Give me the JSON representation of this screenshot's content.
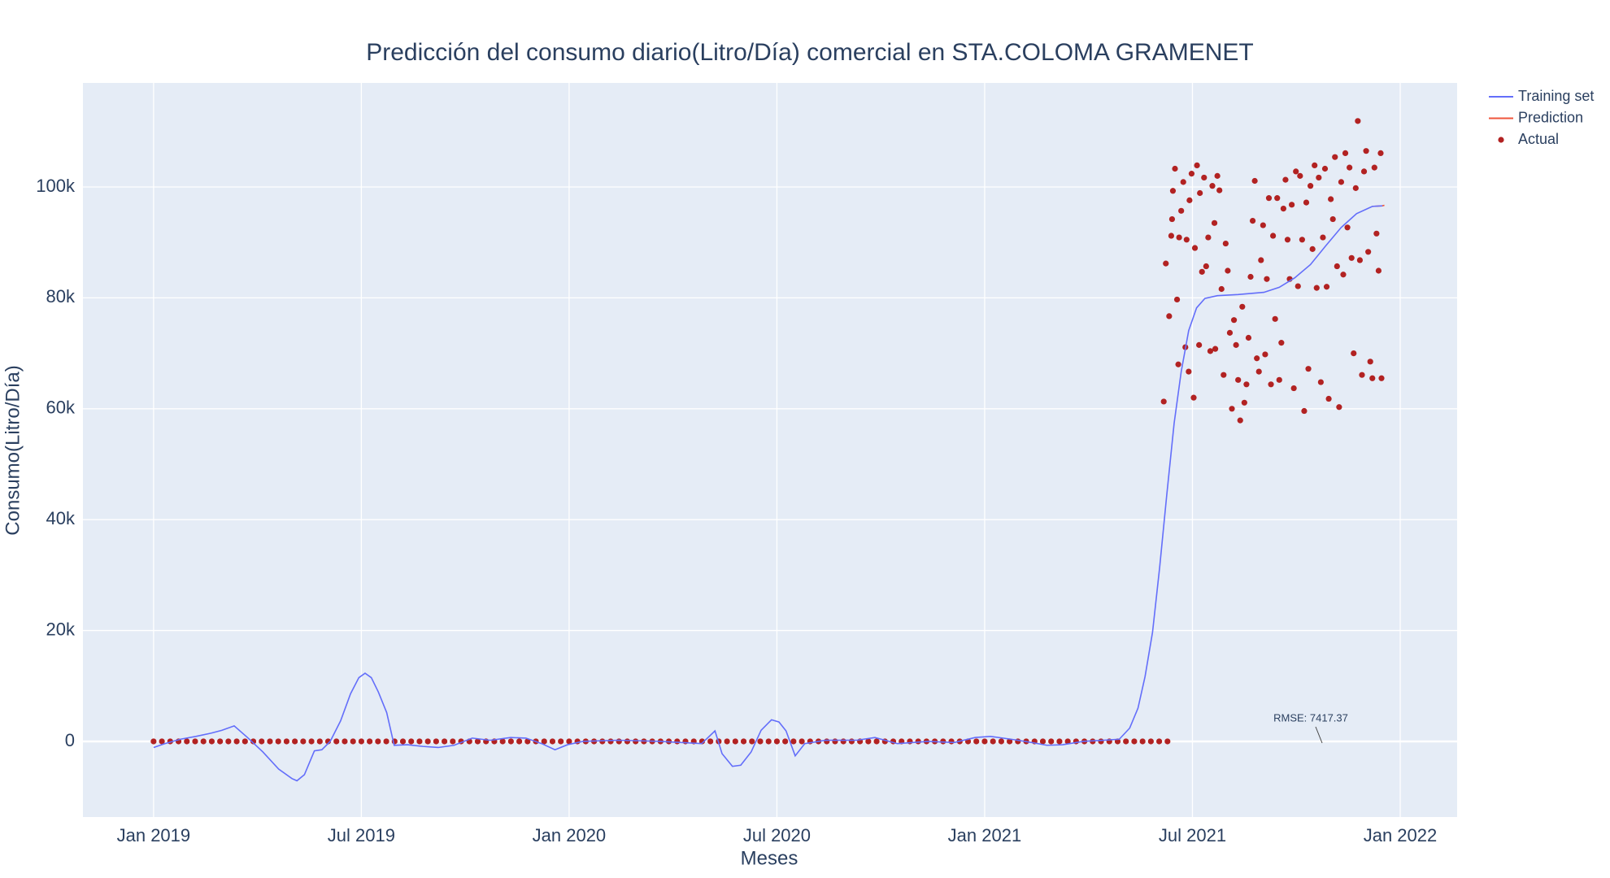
{
  "chart_data": {
    "type": "line",
    "title": "Predicción del consumo diario(Litro/Día) comercial en STA.COLOMA GRAMENET",
    "x_label": "Meses",
    "y_label": "Consumo(Litro/Día)",
    "annotation": "RMSE: 7417.37",
    "grid": true,
    "legend": "outside-top-right",
    "xlim": [
      2018.83,
      2022.137
    ],
    "ylim": [
      -13640,
      118770
    ],
    "xticks": [
      {
        "value": 2019,
        "label": "Jan 2019"
      },
      {
        "value": 2019.5,
        "label": "Jul 2019"
      },
      {
        "value": 2020,
        "label": "Jan 2020"
      },
      {
        "value": 2020.5,
        "label": "Jul 2020"
      },
      {
        "value": 2021,
        "label": "Jan 2021"
      },
      {
        "value": 2021.5,
        "label": "Jul 2021"
      },
      {
        "value": 2022,
        "label": "Jan 2022"
      }
    ],
    "yticks": [
      0,
      {
        "value": 20000,
        "label": "20k"
      },
      {
        "value": 40000,
        "label": "40k"
      },
      {
        "value": 60000,
        "label": "60k"
      },
      {
        "value": 80000,
        "label": "80k"
      },
      {
        "value": 100000,
        "label": "100k"
      }
    ],
    "series": [
      {
        "name": "Training set",
        "color": "#636efa",
        "mode": "lines",
        "x": [
          2019.0,
          2019.027,
          2019.065,
          2019.102,
          2019.139,
          2019.164,
          2019.194,
          2019.226,
          2019.263,
          2019.301,
          2019.333,
          2019.345,
          2019.363,
          2019.387,
          2019.405,
          2019.425,
          2019.45,
          2019.474,
          2019.494,
          2019.509,
          2019.524,
          2019.541,
          2019.561,
          2019.579,
          2019.611,
          2019.648,
          2019.685,
          2019.723,
          2019.767,
          2019.81,
          2019.859,
          2019.896,
          2019.934,
          2019.966,
          2019.996,
          2020.033,
          2020.12,
          2020.219,
          2020.319,
          2020.351,
          2020.368,
          2020.393,
          2020.413,
          2020.438,
          2020.462,
          2020.487,
          2020.505,
          2020.522,
          2020.544,
          2020.567,
          2020.617,
          2020.691,
          2020.736,
          2020.79,
          2020.865,
          2020.927,
          2020.977,
          2021.014,
          2021.063,
          2021.113,
          2021.15,
          2021.188,
          2021.237,
          2021.287,
          2021.324,
          2021.349,
          2021.369,
          2021.386,
          2021.404,
          2021.421,
          2021.438,
          2021.456,
          2021.473,
          2021.491,
          2021.51,
          2021.53,
          2021.56,
          2021.61,
          2021.672,
          2021.709,
          2021.746,
          2021.784,
          2021.821,
          2021.858,
          2021.895,
          2021.933,
          2021.957
        ],
        "values": [
          -1100,
          -400,
          400,
          900,
          1500,
          2000,
          2800,
          700,
          -1900,
          -5000,
          -6700,
          -7100,
          -6000,
          -1700,
          -1500,
          0,
          3700,
          8600,
          11500,
          12300,
          11500,
          8900,
          5200,
          -700,
          -600,
          -900,
          -1100,
          -700,
          600,
          200,
          700,
          600,
          -400,
          -1500,
          -600,
          0,
          200,
          0,
          -400,
          1900,
          -2200,
          -4500,
          -4300,
          -1900,
          2000,
          3900,
          3500,
          1900,
          -2600,
          -400,
          200,
          200,
          700,
          -400,
          0,
          -200,
          700,
          900,
          400,
          -200,
          -700,
          -600,
          0,
          200,
          400,
          2400,
          6000,
          11700,
          19700,
          31300,
          44300,
          57400,
          66700,
          74100,
          78200,
          79900,
          80400,
          80600,
          81000,
          81900,
          83600,
          86000,
          89400,
          92700,
          95200,
          96500,
          96600
        ]
      },
      {
        "name": "Prediction",
        "color": "#ef553b",
        "mode": "lines",
        "x": [
          2021.933,
          2021.957,
          2021.962
        ],
        "values": [
          96500,
          96600,
          96700
        ]
      },
      {
        "name": "Actual",
        "color": "#b22222",
        "mode": "markers",
        "x": [
          2019.0,
          2019.02,
          2019.04,
          2019.06,
          2019.08,
          2019.1,
          2019.12,
          2019.14,
          2019.16,
          2019.18,
          2019.2,
          2019.22,
          2019.24,
          2019.26,
          2019.28,
          2019.3,
          2019.32,
          2019.34,
          2019.36,
          2019.38,
          2019.4,
          2019.42,
          2019.44,
          2019.46,
          2019.48,
          2019.5,
          2019.52,
          2019.54,
          2019.56,
          2019.58,
          2019.6,
          2019.62,
          2019.64,
          2019.66,
          2019.68,
          2019.7,
          2019.72,
          2019.74,
          2019.76,
          2019.78,
          2019.8,
          2019.82,
          2019.84,
          2019.86,
          2019.88,
          2019.9,
          2019.92,
          2019.94,
          2019.96,
          2019.98,
          2020.0,
          2020.02,
          2020.04,
          2020.06,
          2020.08,
          2020.1,
          2020.12,
          2020.14,
          2020.16,
          2020.18,
          2020.2,
          2020.22,
          2020.24,
          2020.26,
          2020.28,
          2020.3,
          2020.32,
          2020.34,
          2020.36,
          2020.38,
          2020.4,
          2020.42,
          2020.44,
          2020.46,
          2020.48,
          2020.5,
          2020.52,
          2020.54,
          2020.56,
          2020.58,
          2020.6,
          2020.62,
          2020.64,
          2020.66,
          2020.68,
          2020.7,
          2020.72,
          2020.74,
          2020.76,
          2020.78,
          2020.8,
          2020.82,
          2020.84,
          2020.86,
          2020.88,
          2020.9,
          2020.92,
          2020.94,
          2020.96,
          2020.98,
          2021.0,
          2021.02,
          2021.04,
          2021.06,
          2021.08,
          2021.1,
          2021.12,
          2021.14,
          2021.16,
          2021.18,
          2021.2,
          2021.22,
          2021.24,
          2021.26,
          2021.28,
          2021.3,
          2021.32,
          2021.34,
          2021.36,
          2021.38,
          2021.4,
          2021.42,
          2021.44,
          2021.431,
          2021.436,
          2021.444,
          2021.449,
          2021.451,
          2021.453,
          2021.458,
          2021.463,
          2021.466,
          2021.468,
          2021.473,
          2021.478,
          2021.483,
          2021.486,
          2021.491,
          2021.493,
          2021.498,
          2021.503,
          2021.506,
          2021.511,
          2021.516,
          2021.518,
          2021.523,
          2021.528,
          2021.533,
          2021.538,
          2021.543,
          2021.548,
          2021.553,
          2021.555,
          2021.56,
          2021.565,
          2021.57,
          2021.575,
          2021.58,
          2021.585,
          2021.59,
          2021.595,
          2021.6,
          2021.605,
          2021.61,
          2021.615,
          2021.62,
          2021.625,
          2021.63,
          2021.635,
          2021.64,
          2021.645,
          2021.65,
          2021.655,
          2021.66,
          2021.665,
          2021.67,
          2021.675,
          2021.679,
          2021.684,
          2021.689,
          2021.694,
          2021.699,
          2021.704,
          2021.709,
          2021.714,
          2021.719,
          2021.724,
          2021.729,
          2021.734,
          2021.739,
          2021.744,
          2021.749,
          2021.754,
          2021.759,
          2021.764,
          2021.769,
          2021.774,
          2021.779,
          2021.784,
          2021.789,
          2021.794,
          2021.799,
          2021.804,
          2021.809,
          2021.814,
          2021.819,
          2021.823,
          2021.828,
          2021.833,
          2021.838,
          2021.843,
          2021.848,
          2021.853,
          2021.858,
          2021.863,
          2021.868,
          2021.873,
          2021.878,
          2021.883,
          2021.888,
          2021.893,
          2021.898,
          2021.903,
          2021.908,
          2021.913,
          2021.918,
          2021.923,
          2021.928,
          2021.933,
          2021.938,
          2021.943,
          2021.948,
          2021.953,
          2021.955
        ],
        "values": [
          0,
          0,
          0,
          0,
          0,
          0,
          0,
          0,
          0,
          0,
          0,
          0,
          0,
          0,
          0,
          0,
          0,
          0,
          0,
          0,
          0,
          0,
          0,
          0,
          0,
          0,
          0,
          0,
          0,
          0,
          0,
          0,
          0,
          0,
          0,
          0,
          0,
          0,
          0,
          0,
          0,
          0,
          0,
          0,
          0,
          0,
          0,
          0,
          0,
          0,
          0,
          0,
          0,
          0,
          0,
          0,
          0,
          0,
          0,
          0,
          0,
          0,
          0,
          0,
          0,
          0,
          0,
          0,
          0,
          0,
          0,
          0,
          0,
          0,
          0,
          0,
          0,
          0,
          0,
          0,
          0,
          0,
          0,
          0,
          0,
          0,
          0,
          0,
          0,
          0,
          0,
          0,
          0,
          0,
          0,
          0,
          0,
          0,
          0,
          0,
          0,
          0,
          0,
          0,
          0,
          0,
          0,
          0,
          0,
          0,
          0,
          0,
          0,
          0,
          0,
          0,
          0,
          0,
          0,
          0,
          0,
          0,
          0,
          61300,
          86200,
          76700,
          91200,
          94200,
          99300,
          103300,
          79700,
          68000,
          90900,
          95700,
          100900,
          71100,
          90500,
          66700,
          97600,
          102400,
          62000,
          89000,
          103900,
          71500,
          98900,
          84700,
          101700,
          85700,
          90900,
          70400,
          100200,
          93500,
          70800,
          102000,
          99400,
          81600,
          66100,
          89800,
          84900,
          73700,
          60000,
          76000,
          71500,
          65200,
          57900,
          78400,
          61100,
          64400,
          72800,
          83800,
          93900,
          101100,
          69100,
          66700,
          86800,
          93100,
          69800,
          83400,
          98000,
          64400,
          91200,
          76200,
          98000,
          65200,
          71900,
          96100,
          101300,
          90500,
          83400,
          96800,
          63700,
          102800,
          82100,
          102000,
          90500,
          59600,
          97200,
          67200,
          100200,
          88800,
          103900,
          81800,
          101700,
          64800,
          90900,
          103300,
          82000,
          61800,
          97800,
          94200,
          105400,
          85700,
          60300,
          100900,
          84200,
          106100,
          92700,
          103500,
          87200,
          70000,
          99800,
          111900,
          86800,
          66100,
          102800,
          106500,
          88300,
          68500,
          65500,
          103500,
          91600,
          84900,
          106100,
          65500
        ]
      }
    ]
  }
}
